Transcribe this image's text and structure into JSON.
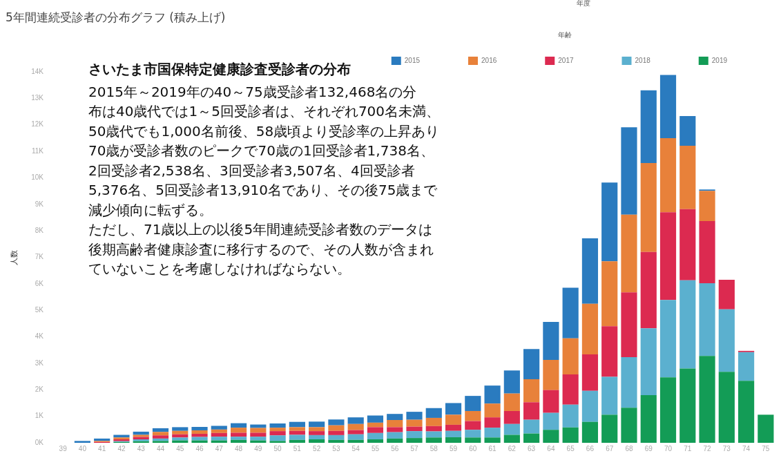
{
  "chart_data": {
    "type": "bar",
    "stacked": true,
    "title": "5年間連続受診者の分布グラフ (積み上げ)",
    "xlabel": "年齢",
    "ylabel": "人数",
    "legend_title": "年度",
    "legend": "top right",
    "grid": false,
    "categories": [
      "39",
      "40",
      "41",
      "42",
      "43",
      "44",
      "45",
      "46",
      "47",
      "48",
      "49",
      "50",
      "51",
      "52",
      "53",
      "54",
      "55",
      "56",
      "57",
      "58",
      "59",
      "60",
      "61",
      "62",
      "63",
      "64",
      "65",
      "66",
      "67",
      "68",
      "69",
      "70",
      "71",
      "72",
      "73",
      "74",
      "75"
    ],
    "ylim": [
      0,
      14000
    ],
    "yticks": [
      {
        "value": 0,
        "label": "0K"
      },
      {
        "value": 1000,
        "label": "1K"
      },
      {
        "value": 2000,
        "label": "2K"
      },
      {
        "value": 3000,
        "label": "3K"
      },
      {
        "value": 4000,
        "label": "4K"
      },
      {
        "value": 5000,
        "label": "5K"
      },
      {
        "value": 6000,
        "label": "6K"
      },
      {
        "value": 7000,
        "label": "7K"
      },
      {
        "value": 8000,
        "label": "8K"
      },
      {
        "value": 9000,
        "label": "9K"
      },
      {
        "value": 10000,
        "label": "10K"
      },
      {
        "value": 11000,
        "label": "11K"
      },
      {
        "value": 12000,
        "label": "12K"
      },
      {
        "value": 13000,
        "label": "13K"
      },
      {
        "value": 14000,
        "label": "14K"
      }
    ],
    "series": [
      {
        "name": "2019",
        "color": "#139c56",
        "values": [
          null,
          null,
          null,
          30,
          60,
          70,
          90,
          90,
          90,
          110,
          90,
          70,
          110,
          130,
          110,
          110,
          130,
          160,
          180,
          200,
          210,
          200,
          200,
          300,
          350,
          490,
          580,
          790,
          1060,
          1320,
          1800,
          2470,
          2800,
          3280,
          2680,
          2340,
          1060
        ]
      },
      {
        "name": "2018",
        "color": "#5bb0cf",
        "values": [
          null,
          null,
          null,
          30,
          70,
          90,
          110,
          130,
          140,
          120,
          140,
          210,
          190,
          160,
          180,
          210,
          240,
          240,
          260,
          230,
          240,
          290,
          370,
          410,
          520,
          640,
          860,
          1170,
          1430,
          1910,
          2520,
          2920,
          3330,
          2740,
          2360,
          1080,
          null
        ]
      },
      {
        "name": "2017",
        "color": "#dc2a50",
        "values": [
          null,
          null,
          30,
          70,
          90,
          120,
          120,
          120,
          140,
          150,
          150,
          160,
          150,
          150,
          160,
          160,
          220,
          190,
          170,
          200,
          230,
          330,
          390,
          490,
          660,
          860,
          1140,
          1380,
          1910,
          2450,
          2880,
          3310,
          2690,
          2350,
          1110,
          50,
          null
        ]
      },
      {
        "name": "2016",
        "color": "#e8813a",
        "values": [
          null,
          null,
          40,
          70,
          80,
          130,
          130,
          130,
          130,
          190,
          180,
          130,
          140,
          150,
          210,
          230,
          170,
          270,
          260,
          310,
          380,
          380,
          520,
          660,
          870,
          1140,
          1360,
          1910,
          2450,
          2930,
          3360,
          2800,
          2390,
          1140,
          null,
          null,
          null
        ]
      },
      {
        "name": "2015",
        "color": "#2a7bbf",
        "values": [
          null,
          70,
          90,
          100,
          120,
          140,
          140,
          130,
          140,
          170,
          130,
          160,
          200,
          210,
          220,
          250,
          270,
          230,
          300,
          370,
          440,
          570,
          680,
          870,
          1140,
          1430,
          1910,
          2470,
          2970,
          3300,
          2740,
          2380,
          1120,
          50,
          null,
          null,
          null
        ]
      }
    ],
    "annotations": [
      "さいたま市国保特定健康診査受診者の分布",
      "2015年～2019年の40～75歳受診者132,468名の分",
      "布は40歳代では1～5回受診者は、それぞれ700名未満、",
      "50歳代でも1,000名前後、58歳頃より受診率の上昇あり",
      "70歳が受診者数のピークで70歳の1回受診者1,738名、",
      "2回受診者2,538名、3回受診者3,507名、4回受診者",
      "5,376名、5回受診者13,910名であり、その後75歳まで",
      "減少傾向に転ずる。",
      "ただし、71歳以上の以後5年間連続受診者数のデータは",
      "後期高齢者健康診査に移行するので、その人数が含まれ",
      "ていないことを考慮しなければならない。"
    ]
  }
}
